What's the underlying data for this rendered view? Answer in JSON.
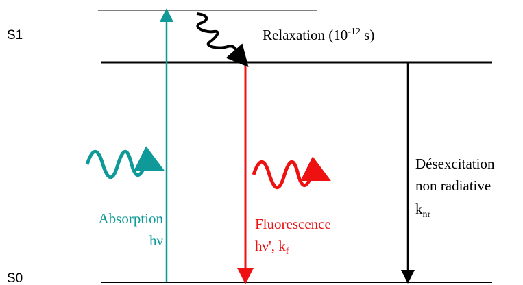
{
  "levels": {
    "s1": "S1",
    "s0": "S0"
  },
  "relaxation": {
    "text": "Relaxation (10",
    "exponent": "-12",
    "unit": " s)"
  },
  "absorption": {
    "label": "Absorption",
    "energy": "hν"
  },
  "fluorescence": {
    "label": "Fluorescence",
    "energy": "hν', k",
    "subscript": "f"
  },
  "nonradiative": {
    "line1": "Désexcitation",
    "line2": "non radiative",
    "rate": "k",
    "subscript": "nr"
  }
}
